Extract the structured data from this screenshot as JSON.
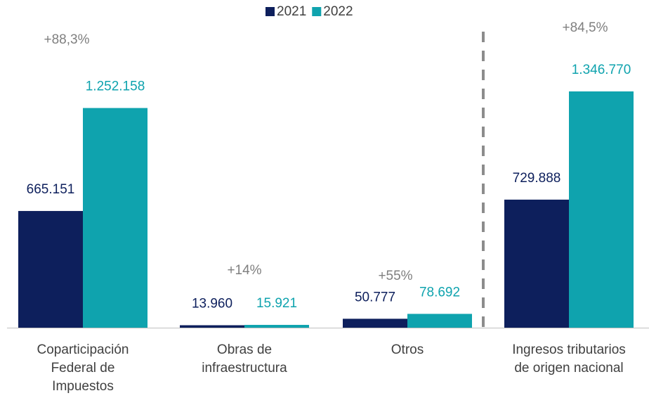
{
  "chart_data": {
    "type": "bar",
    "categories": [
      "Coparticipación\nFederal de\nImpuestos",
      "Obras de\ninfraestructura",
      "Otros",
      "Ingresos tributarios\nde origen nacional"
    ],
    "series": [
      {
        "name": "2021",
        "color": "#0d1f5c",
        "values": [
          665151,
          13960,
          50777,
          729888
        ],
        "value_labels": [
          "665.151",
          "13.960",
          "50.777",
          "729.888"
        ]
      },
      {
        "name": "2022",
        "color": "#0fa3ae",
        "values": [
          1252158,
          15921,
          78692,
          1346770
        ],
        "value_labels": [
          "1.252.158",
          "15.921",
          "78.692",
          "1.346.770"
        ]
      }
    ],
    "annotations": [
      "+88,3%",
      "+14%",
      "+55%",
      "+84,5%"
    ],
    "legend": "top"
  }
}
